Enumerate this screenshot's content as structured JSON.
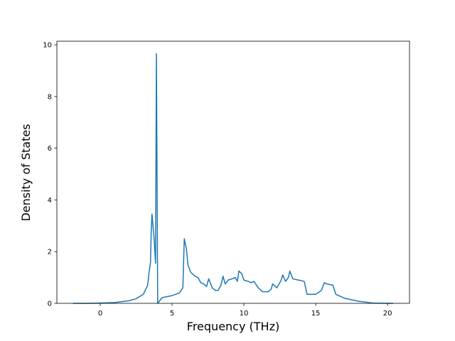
{
  "chart_data": {
    "type": "line",
    "x_label": "Frequency (THz)",
    "y_label": "Density of States",
    "xlim": [
      -3.02,
      21.53
    ],
    "ylim": [
      0,
      10.14
    ],
    "xticks": [
      0,
      5,
      10,
      15,
      20
    ],
    "yticks": [
      0,
      2,
      4,
      6,
      8,
      10
    ],
    "grid": false,
    "series": [
      {
        "color": "#1f77b4",
        "x": [
          -1.9,
          -1,
          0,
          1,
          2,
          2.5,
          3,
          3.3,
          3.4,
          3.5,
          3.55,
          3.6,
          3.75,
          3.85,
          3.91,
          4.0,
          4.3,
          5,
          5.5,
          5.75,
          5.85,
          6.0,
          6.1,
          6.3,
          6.6,
          6.8,
          7.0,
          7.2,
          7.4,
          7.55,
          7.8,
          8.0,
          8.2,
          8.4,
          8.55,
          8.7,
          8.9,
          9.2,
          9.4,
          9.55,
          9.65,
          9.85,
          10.0,
          10.3,
          10.5,
          10.7,
          11.0,
          11.3,
          11.7,
          11.9,
          12.0,
          12.3,
          12.6,
          12.7,
          12.9,
          13.1,
          13.2,
          13.4,
          13.8,
          14.2,
          14.4,
          15.0,
          15.4,
          15.6,
          15.8,
          16.2,
          16.4,
          17,
          18,
          19,
          20.4
        ],
        "values": [
          0,
          0,
          0.01,
          0.03,
          0.1,
          0.18,
          0.35,
          0.7,
          1.2,
          1.6,
          2.8,
          3.45,
          2.5,
          1.55,
          9.66,
          0,
          0.22,
          0.3,
          0.4,
          0.6,
          2.5,
          2.1,
          1.5,
          1.2,
          1.05,
          1.0,
          0.8,
          0.75,
          0.65,
          0.95,
          0.6,
          0.5,
          0.5,
          0.7,
          1.05,
          0.75,
          0.9,
          0.95,
          1.0,
          0.85,
          1.25,
          1.15,
          0.9,
          0.85,
          0.8,
          0.85,
          0.6,
          0.45,
          0.45,
          0.55,
          0.75,
          0.6,
          0.9,
          1.1,
          0.85,
          1.0,
          1.25,
          0.95,
          0.9,
          0.85,
          0.35,
          0.35,
          0.5,
          0.8,
          0.75,
          0.7,
          0.35,
          0.2,
          0.08,
          0.01,
          0
        ]
      }
    ]
  }
}
